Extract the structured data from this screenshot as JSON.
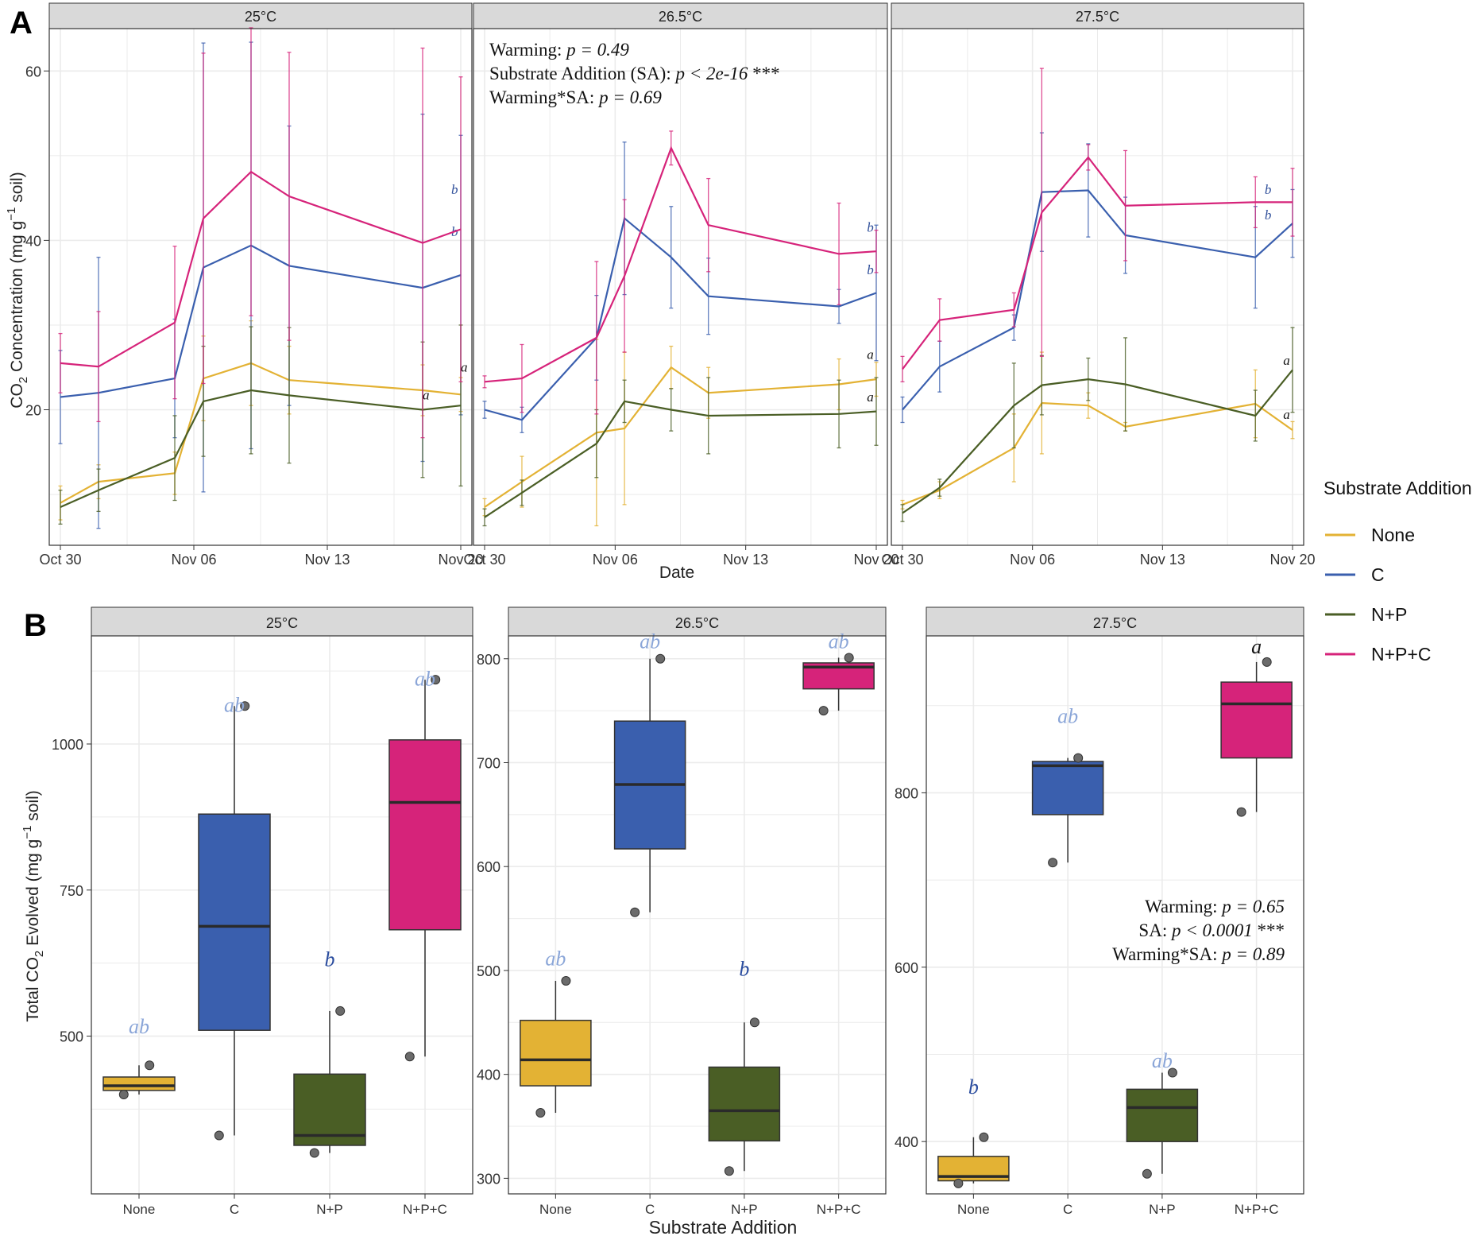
{
  "colors": {
    "None": "#E3B234",
    "C": "#3A5FAE",
    "N+P": "#4A5E25",
    "N+P+C": "#D6237A",
    "strip": "#D9D9D9",
    "grid": "#EBEBEB",
    "sig_light": "#8BA6D8",
    "sig_dark": "#2A4C9E"
  },
  "panel_labels": {
    "a": "A",
    "b": "B"
  },
  "legend": {
    "title": "Substrate Addition",
    "items": [
      "None",
      "C",
      "N+P",
      "N+P+C"
    ]
  },
  "chart_data": [
    {
      "id": "A",
      "type": "line",
      "ylabel": "CO2 Concentration (mg g-1 soil)",
      "ylabel_parts": {
        "pre": "CO",
        "sub": "2",
        "mid": " Concentration (mg g",
        "sup": "−1",
        "post": " soil)"
      },
      "xlabel": "Date",
      "x_ticks": [
        {
          "label": "Oct 30",
          "day": 0
        },
        {
          "label": "Nov 06",
          "day": 7
        },
        {
          "label": "Nov 13",
          "day": 14
        },
        {
          "label": "Nov 20",
          "day": 21
        }
      ],
      "x_range": [
        -1,
        22
      ],
      "y_ticks": [
        20,
        40,
        60
      ],
      "y_range": [
        4,
        65
      ],
      "grid": true,
      "facets": [
        {
          "title": "25°C",
          "series": [
            {
              "name": "None",
              "days": [
                0,
                2,
                6,
                7.5,
                10,
                12,
                19,
                21
              ],
              "values": [
                9.0,
                11.5,
                12.5,
                23.7,
                25.5,
                23.5,
                22.3,
                21.8
              ],
              "err": [
                2,
                2,
                2.5,
                5,
                5,
                4,
                3,
                2
              ],
              "label": "a",
              "label_pos": [
                21,
                24.5
              ]
            },
            {
              "name": "C",
              "days": [
                0,
                2,
                6,
                7.5,
                10,
                12,
                19,
                21
              ],
              "values": [
                21.5,
                22.0,
                23.7,
                36.8,
                39.4,
                37.0,
                34.4,
                35.9
              ],
              "err": [
                5.5,
                16,
                7,
                26.5,
                24,
                16.5,
                20.5,
                16.5
              ],
              "label": "b",
              "label_pos": [
                20.5,
                40.5
              ]
            },
            {
              "name": "N+P",
              "days": [
                0,
                2,
                6,
                7.5,
                10,
                12,
                19,
                21
              ],
              "values": [
                8.5,
                10.5,
                14.3,
                21.0,
                22.3,
                21.7,
                20.0,
                20.5
              ],
              "err": [
                2,
                2.5,
                5,
                6.5,
                7.5,
                8,
                8,
                9.5
              ],
              "label": "a",
              "label_pos": [
                19,
                21.2
              ]
            },
            {
              "name": "N+P+C",
              "days": [
                0,
                2,
                6,
                7.5,
                10,
                12,
                19,
                21
              ],
              "values": [
                25.5,
                25.1,
                30.3,
                42.6,
                48.1,
                45.2,
                39.7,
                41.3
              ],
              "err": [
                3.5,
                6.5,
                9,
                19.5,
                17,
                17,
                23,
                18
              ],
              "label": "b",
              "label_pos": [
                20.5,
                45.5
              ]
            }
          ]
        },
        {
          "title": "26.5°C",
          "annotation": [
            {
              "label": "Warming: ",
              "p": "p = 0.49",
              "stars": ""
            },
            {
              "label": "Substrate Addition (SA): ",
              "p": "p < 2e-16",
              "stars": " ***"
            },
            {
              "label": "Warming*SA: ",
              "p": "p = 0.69",
              "stars": ""
            }
          ],
          "series": [
            {
              "name": "None",
              "days": [
                0,
                2,
                6,
                7.5,
                10,
                12,
                19,
                21
              ],
              "values": [
                8.5,
                11.5,
                17.3,
                17.8,
                25.0,
                22.0,
                23.0,
                23.6
              ],
              "err": [
                1,
                3,
                11,
                9,
                2.5,
                3,
                3,
                2
              ],
              "label": "a",
              "label_pos": [
                20.5,
                26.0
              ]
            },
            {
              "name": "C",
              "days": [
                0,
                2,
                6,
                7.5,
                10,
                12,
                19,
                21
              ],
              "values": [
                20.0,
                18.8,
                28.5,
                42.6,
                38.0,
                33.4,
                32.2,
                33.8
              ],
              "err": [
                1,
                1.5,
                5,
                9,
                6,
                4.5,
                2,
                8
              ],
              "label": "b",
              "label_pos": [
                20.5,
                36.0
              ]
            },
            {
              "name": "N+P",
              "days": [
                0,
                2,
                6,
                7.5,
                10,
                12,
                19,
                21
              ],
              "values": [
                7.3,
                10.2,
                16.0,
                21.0,
                20.0,
                19.3,
                19.5,
                19.8
              ],
              "err": [
                1,
                1.5,
                4,
                2.5,
                2.5,
                4.5,
                4,
                4
              ],
              "label": "a",
              "label_pos": [
                20.5,
                21.0
              ]
            },
            {
              "name": "N+P+C",
              "days": [
                0,
                2,
                6,
                7.5,
                10,
                12,
                19,
                21
              ],
              "values": [
                23.3,
                23.7,
                28.5,
                35.8,
                50.9,
                41.8,
                38.4,
                38.7
              ],
              "err": [
                0.7,
                4,
                9,
                9,
                2,
                5.5,
                6,
                2.5
              ],
              "label": "b",
              "label_pos": [
                20.5,
                41.0
              ]
            }
          ]
        },
        {
          "title": "27.5°C",
          "series": [
            {
              "name": "None",
              "days": [
                0,
                2,
                6,
                7.5,
                10,
                12,
                19,
                21
              ],
              "values": [
                8.8,
                10.5,
                15.5,
                20.8,
                20.5,
                18.0,
                20.7,
                17.6
              ],
              "err": [
                0.5,
                1,
                4,
                6,
                1.5,
                0.5,
                4,
                1
              ],
              "label": "a",
              "label_pos": [
                20.5,
                18.9
              ]
            },
            {
              "name": "C",
              "days": [
                0,
                2,
                6,
                7.5,
                10,
                12,
                19,
                21
              ],
              "values": [
                20.0,
                25.1,
                29.7,
                45.7,
                45.9,
                40.6,
                38.0,
                42.0
              ],
              "err": [
                1.5,
                3,
                1.5,
                7,
                5.5,
                4.5,
                6,
                4
              ],
              "label": "b",
              "label_pos": [
                19.5,
                42.5
              ]
            },
            {
              "name": "N+P",
              "days": [
                0,
                2,
                6,
                7.5,
                10,
                12,
                19,
                21
              ],
              "values": [
                7.8,
                10.8,
                20.5,
                22.9,
                23.6,
                23.0,
                19.3,
                24.7
              ],
              "err": [
                1,
                1,
                5,
                3.5,
                2.5,
                5.5,
                3,
                5
              ],
              "label": "a",
              "label_pos": [
                20.5,
                25.3
              ]
            },
            {
              "name": "N+P+C",
              "days": [
                0,
                2,
                6,
                7.5,
                10,
                12,
                19,
                21
              ],
              "values": [
                24.8,
                30.6,
                31.8,
                43.3,
                49.8,
                44.1,
                44.5,
                44.5
              ],
              "err": [
                1.5,
                2.5,
                2,
                17,
                1.5,
                6.5,
                3,
                4
              ],
              "label": "b",
              "label_pos": [
                19.5,
                45.5
              ]
            }
          ]
        }
      ]
    },
    {
      "id": "B",
      "type": "box",
      "ylabel": "Total CO2 Evolved (mg g-1 soil)",
      "ylabel_parts": {
        "pre": "Total CO",
        "sub": "2",
        "mid": " Evolved (mg g",
        "sup": "−1",
        "post": " soil)"
      },
      "xlabel": "Substrate Addition",
      "categories": [
        "None",
        "C",
        "N+P",
        "N+P+C"
      ],
      "facets": [
        {
          "title": "25°C",
          "y_range": [
            230,
            1185
          ],
          "y_ticks": [
            500,
            750,
            1000
          ],
          "minor_ticks": [
            375,
            625,
            875,
            1125
          ],
          "boxes": [
            {
              "name": "None",
              "q1": 407,
              "median": 415,
              "q3": 430,
              "whisker_low": 400,
              "whisker_high": 450,
              "points": [
                400,
                450
              ],
              "label": "ab",
              "label_y": 505,
              "label_color": "sig_light"
            },
            {
              "name": "C",
              "q1": 510,
              "median": 688,
              "q3": 880,
              "whisker_low": 330,
              "whisker_high": 1065,
              "points": [
                330,
                1065
              ],
              "label": "ab",
              "label_y": 1055,
              "label_color": "sig_light"
            },
            {
              "name": "N+P",
              "q1": 313,
              "median": 330,
              "q3": 435,
              "whisker_low": 300,
              "whisker_high": 543,
              "points": [
                300,
                543
              ],
              "label": "b",
              "label_y": 620,
              "label_color": "sig_dark"
            },
            {
              "name": "N+P+C",
              "q1": 682,
              "median": 900,
              "q3": 1007,
              "whisker_low": 465,
              "whisker_high": 1110,
              "points": [
                465,
                1110
              ],
              "label": "ab",
              "label_y": 1100,
              "label_color": "sig_light"
            }
          ]
        },
        {
          "title": "26.5°C",
          "y_range": [
            285,
            822
          ],
          "y_ticks": [
            300,
            400,
            500,
            600,
            700,
            800
          ],
          "minor_ticks": [
            350,
            450,
            550,
            650,
            750
          ],
          "boxes": [
            {
              "name": "None",
              "q1": 389,
              "median": 414,
              "q3": 452,
              "whisker_low": 363,
              "whisker_high": 490,
              "points": [
                363,
                490
              ],
              "label": "ab",
              "label_y": 505,
              "label_color": "sig_light"
            },
            {
              "name": "C",
              "q1": 617,
              "median": 679,
              "q3": 740,
              "whisker_low": 556,
              "whisker_high": 800,
              "points": [
                556,
                800
              ],
              "label": "ab",
              "label_y": 810,
              "label_color": "sig_light"
            },
            {
              "name": "N+P",
              "q1": 336,
              "median": 365,
              "q3": 407,
              "whisker_low": 307,
              "whisker_high": 450,
              "points": [
                307,
                450
              ],
              "label": "b",
              "label_y": 495,
              "label_color": "sig_dark"
            },
            {
              "name": "N+P+C",
              "q1": 771,
              "median": 792,
              "q3": 796,
              "whisker_low": 750,
              "whisker_high": 801,
              "points": [
                750,
                801
              ],
              "label": "ab",
              "label_y": 810,
              "label_color": "sig_light"
            }
          ]
        },
        {
          "title": "27.5°C",
          "y_range": [
            340,
            980
          ],
          "y_ticks": [
            400,
            600,
            800
          ],
          "minor_ticks": [
            500,
            700,
            900
          ],
          "annotation": [
            {
              "label": "Warming: ",
              "p": "p = 0.65",
              "stars": ""
            },
            {
              "label": "SA: ",
              "p": "p < 0.0001",
              "stars": " ***"
            },
            {
              "label": "Warming*SA: ",
              "p": "p = 0.89",
              "stars": ""
            }
          ],
          "boxes": [
            {
              "name": "None",
              "q1": 355,
              "median": 360,
              "q3": 383,
              "whisker_low": 352,
              "whisker_high": 405,
              "points": [
                352,
                405
              ],
              "label": "b",
              "label_y": 455,
              "label_color": "sig_dark"
            },
            {
              "name": "C",
              "q1": 775,
              "median": 831,
              "q3": 836,
              "whisker_low": 720,
              "whisker_high": 840,
              "points": [
                720,
                840
              ],
              "label": "ab",
              "label_y": 880,
              "label_color": "sig_light"
            },
            {
              "name": "N+P",
              "q1": 400,
              "median": 439,
              "q3": 460,
              "whisker_low": 363,
              "whisker_high": 479,
              "points": [
                363,
                479
              ],
              "label": "ab",
              "label_y": 485,
              "label_color": "sig_light"
            },
            {
              "name": "N+P+C",
              "q1": 840,
              "median": 902,
              "q3": 927,
              "whisker_low": 778,
              "whisker_high": 950,
              "points": [
                778,
                950
              ],
              "label": "a",
              "label_y": 960,
              "label_color": "black"
            }
          ]
        }
      ]
    }
  ]
}
